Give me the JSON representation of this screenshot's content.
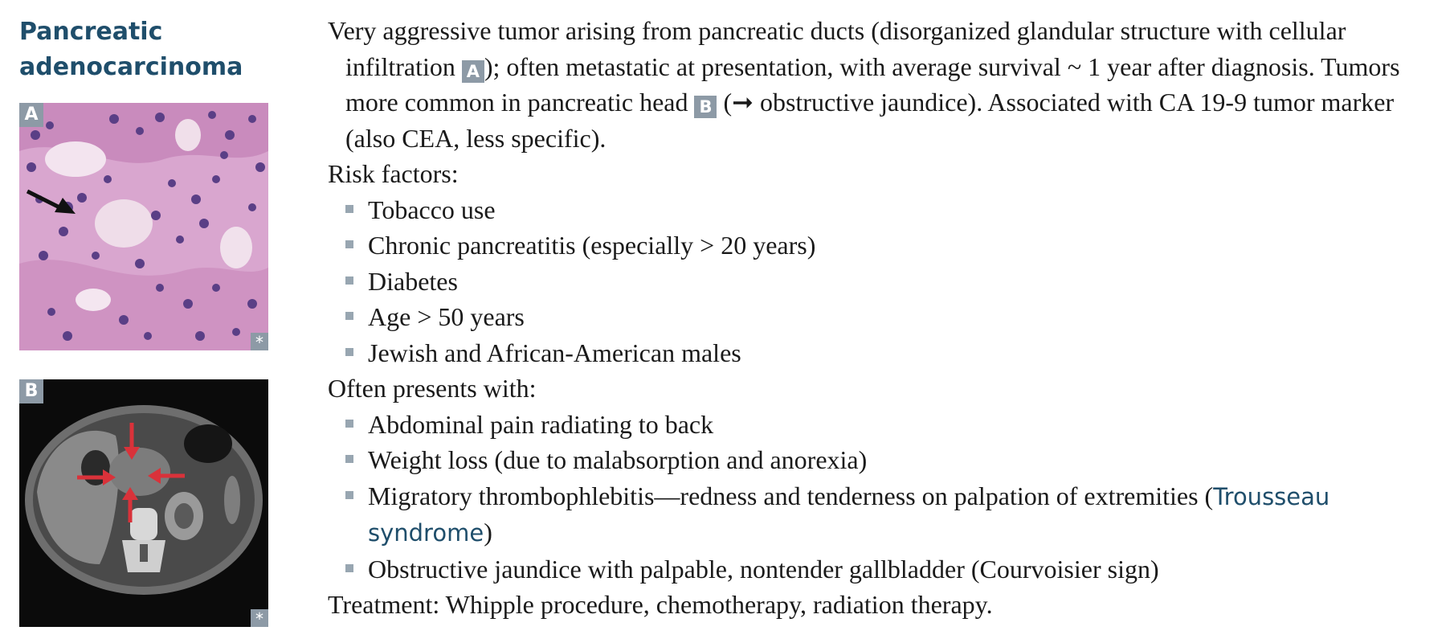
{
  "heading": {
    "line1": "Pancreatic",
    "line2": "adenocarcinoma"
  },
  "figures": {
    "a": {
      "label": "A",
      "asterisk": "*"
    },
    "b": {
      "label": "B",
      "asterisk": "*"
    }
  },
  "intro": {
    "part1": "Very aggressive tumor arising from pancreatic ducts (disorganized glandular structure with cellular infiltration ",
    "ref_a": "A",
    "part2": "); often metastatic at presentation, with average survival ~ 1 year after diagnosis. Tumors more common in pancreatic head ",
    "ref_b": "B",
    "part3": " (➞ obstructive jaundice). Associated with CA 19-9 tumor marker (also CEA, less specific)."
  },
  "risk_factors": {
    "title": "Risk factors:",
    "items": [
      "Tobacco use",
      "Chronic pancreatitis (especially > 20 years)",
      "Diabetes",
      "Age > 50 years",
      "Jewish and African-American males"
    ]
  },
  "presents": {
    "title": "Often presents with:",
    "items": [
      "Abdominal pain radiating to back",
      "Weight loss (due to malabsorption and anorexia)"
    ],
    "migratory": {
      "text": "Migratory thrombophlebitis—redness and tenderness on palpation of extremities (",
      "term": "Trousseau syndrome",
      "close": ")"
    },
    "last_item": "Obstructive jaundice with palpable, nontender gallbladder (Courvoisier sign)"
  },
  "treatment": "Treatment: Whipple procedure, chemotherapy, radiation therapy.",
  "colors": {
    "heading": "#1f4e6b",
    "label_bg": "#8d9aa6",
    "arrow_red": "#d9323a",
    "tissue": "#d6a3cf"
  }
}
